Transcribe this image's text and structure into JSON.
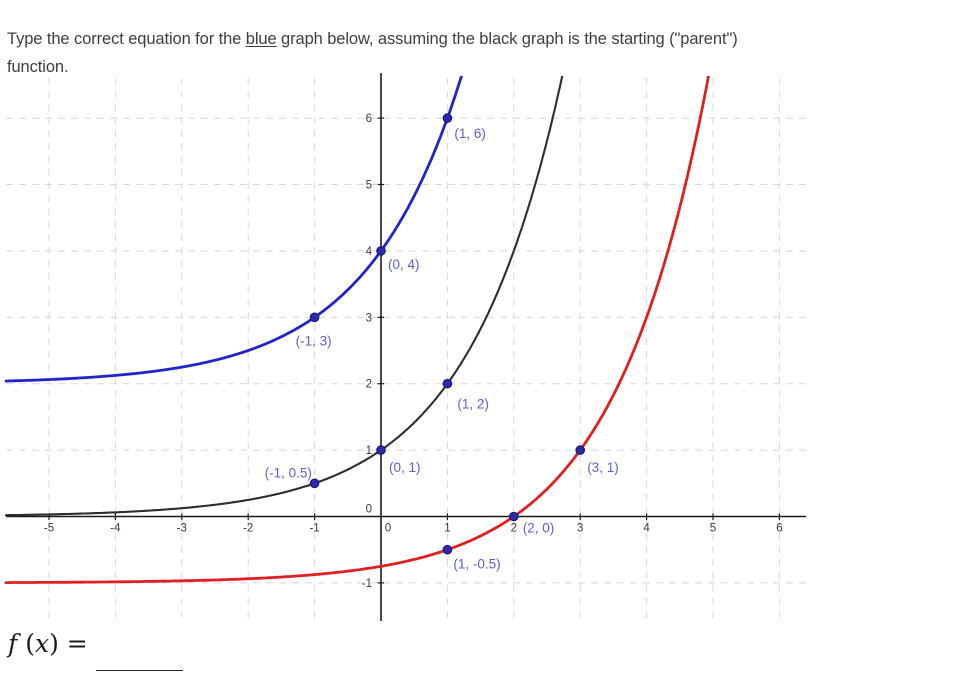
{
  "prompt": {
    "before_emphasis": "Type the correct equation for the ",
    "emphasis": "blue",
    "after_emphasis": " graph below, assuming the black graph is the starting (\"parent\")",
    "line2": "function."
  },
  "answer": {
    "f": "f",
    "open_paren": " (",
    "x": "x",
    "close_paren": ") ",
    "equals": "=",
    "blank_value": ""
  },
  "colors": {
    "grid": "#d8d8d8",
    "axis": "#1a1a1a",
    "tick_label": "#3a3a3a",
    "point_fill": "#2b2ba6",
    "point_stroke": "#15157a",
    "point_label": "#5c5cd6",
    "blue_curve": "#2323cc",
    "black_curve": "#2e2e2e",
    "red_curve": "#e02020"
  },
  "chart_data": {
    "type": "line",
    "title": "",
    "xlabel": "",
    "ylabel": "",
    "grid": true,
    "x_ticks": [
      -5,
      -4,
      -3,
      -2,
      -1,
      0,
      1,
      2,
      3,
      4,
      5,
      6
    ],
    "y_ticks": [
      -1,
      0,
      1,
      2,
      3,
      4,
      5,
      6
    ],
    "x_range": [
      -5.66,
      6.4
    ],
    "y_range": [
      -1.63,
      6.6
    ],
    "series": [
      {
        "name": "black-parent",
        "role": "parent function",
        "equation": "y = 2^x",
        "color": "#2e2e2e",
        "stroke_width": 2.1,
        "a": 1,
        "b": 2,
        "h": 0,
        "k": 0,
        "asymptote_y": 0,
        "points": [
          {
            "x": -1,
            "y": 0.5,
            "label": "(-1, 0.5)",
            "dx": -50,
            "dy": -6
          },
          {
            "x": 0,
            "y": 1,
            "label": "(0, 1)",
            "dx": 8,
            "dy": 22
          },
          {
            "x": 1,
            "y": 2,
            "label": "(1, 2)",
            "dx": 10,
            "dy": 25
          }
        ]
      },
      {
        "name": "blue-target",
        "role": "target graph",
        "equation": "y = 2^(x+1) + 2",
        "color": "#2323cc",
        "stroke_width": 2.8,
        "a": 1,
        "b": 2,
        "h": -1,
        "k": 2,
        "asymptote_y": 2,
        "points": [
          {
            "x": -1,
            "y": 3,
            "label": "(-1, 3)",
            "dx": -19,
            "dy": 28
          },
          {
            "x": 0,
            "y": 4,
            "label": "(0, 4)",
            "dx": 7,
            "dy": 18
          },
          {
            "x": 1,
            "y": 6,
            "label": "(1, 6)",
            "dx": 7,
            "dy": 20
          }
        ]
      },
      {
        "name": "red-shifted",
        "role": "second transformed graph",
        "equation": "y = 2^(x-2) - 1",
        "color": "#e02020",
        "stroke_width": 2.8,
        "a": 1,
        "b": 2,
        "h": 2,
        "k": -1,
        "asymptote_y": -1,
        "points": [
          {
            "x": 1,
            "y": -0.5,
            "label": "(1, -0.5)",
            "dx": 6,
            "dy": 19
          },
          {
            "x": 2,
            "y": 0,
            "label": "(2, 0)",
            "dx": 9,
            "dy": 16
          },
          {
            "x": 3,
            "y": 1,
            "label": "(3, 1)",
            "dx": 7,
            "dy": 22
          }
        ]
      }
    ]
  }
}
